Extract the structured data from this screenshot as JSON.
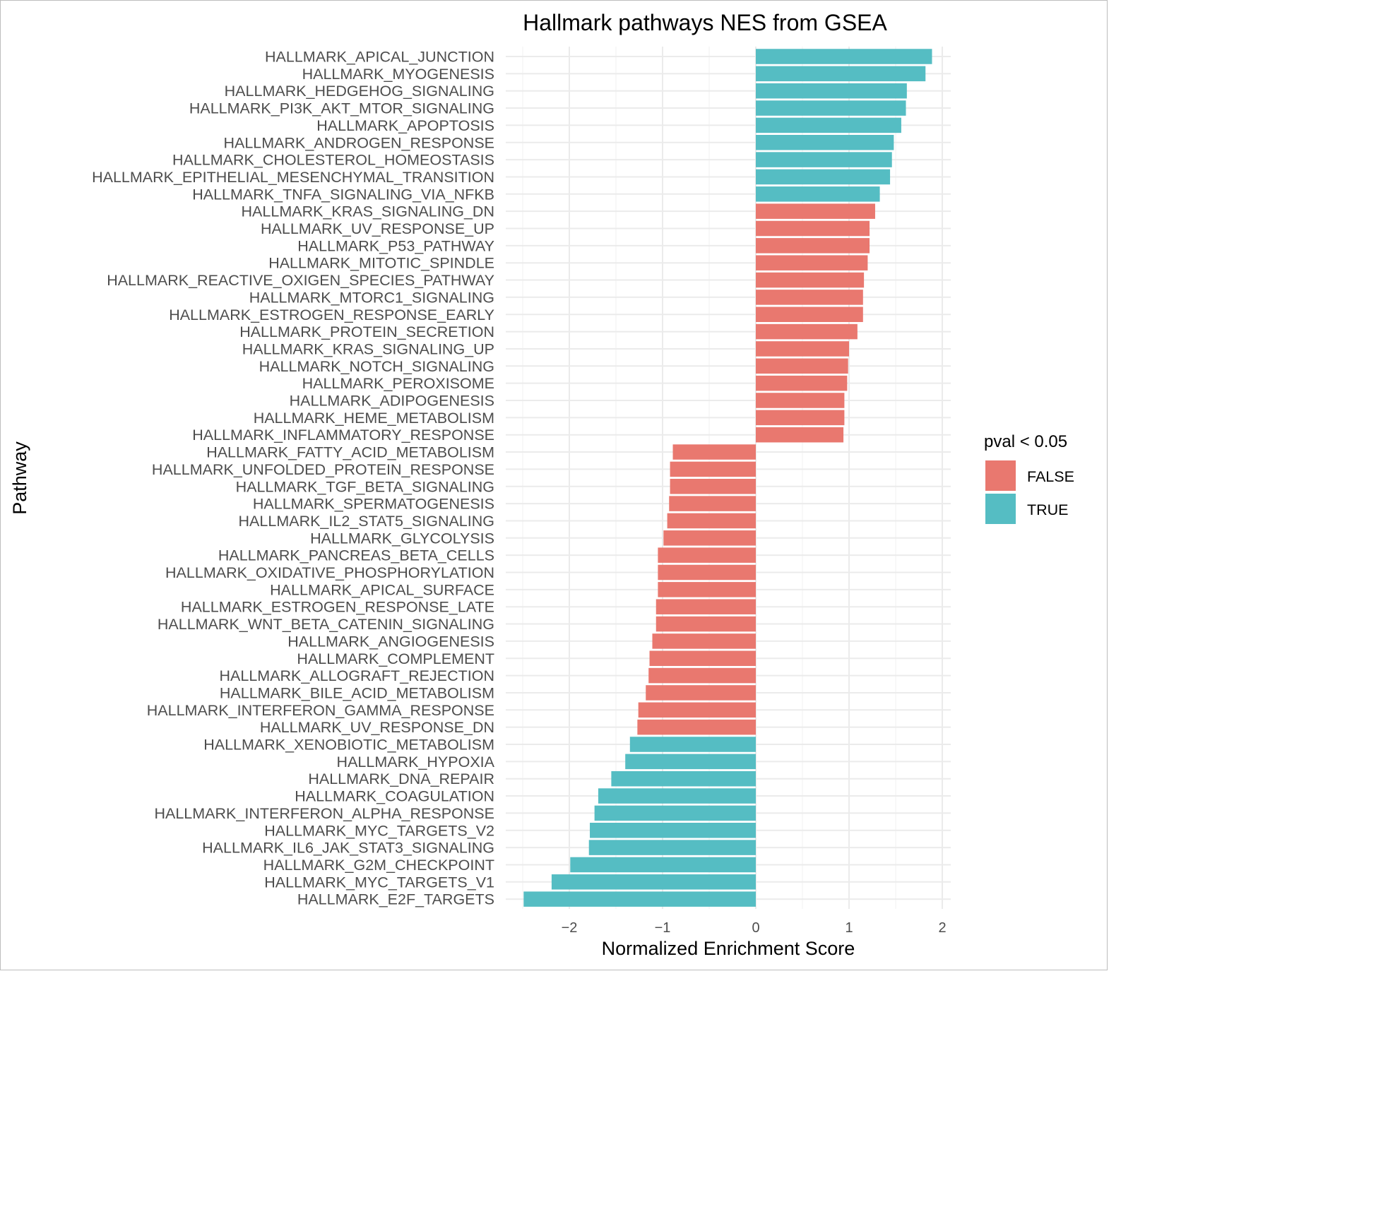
{
  "chart_data": {
    "type": "bar",
    "orientation": "horizontal",
    "title": "Hallmark pathways NES from GSEA",
    "xlabel": "Normalized Enrichment Score",
    "ylabel": "Pathway",
    "xlim": [
      -2.5,
      2.05
    ],
    "xticks": [
      -2,
      -1,
      0,
      1,
      2
    ],
    "xtick_labels": [
      "−2",
      "−1",
      "0",
      "1",
      "2"
    ],
    "grid": true,
    "legend": {
      "title": "pval < 0.05",
      "position": "right",
      "entries": [
        {
          "label": "FALSE",
          "color": "#E9786F"
        },
        {
          "label": "TRUE",
          "color": "#55BDC3"
        }
      ]
    },
    "bars": [
      {
        "pathway": "HALLMARK_APICAL_JUNCTION",
        "nes": 1.89,
        "significant": "TRUE"
      },
      {
        "pathway": "HALLMARK_MYOGENESIS",
        "nes": 1.82,
        "significant": "TRUE"
      },
      {
        "pathway": "HALLMARK_HEDGEHOG_SIGNALING",
        "nes": 1.62,
        "significant": "TRUE"
      },
      {
        "pathway": "HALLMARK_PI3K_AKT_MTOR_SIGNALING",
        "nes": 1.61,
        "significant": "TRUE"
      },
      {
        "pathway": "HALLMARK_APOPTOSIS",
        "nes": 1.56,
        "significant": "TRUE"
      },
      {
        "pathway": "HALLMARK_ANDROGEN_RESPONSE",
        "nes": 1.48,
        "significant": "TRUE"
      },
      {
        "pathway": "HALLMARK_CHOLESTEROL_HOMEOSTASIS",
        "nes": 1.46,
        "significant": "TRUE"
      },
      {
        "pathway": "HALLMARK_EPITHELIAL_MESENCHYMAL_TRANSITION",
        "nes": 1.44,
        "significant": "TRUE"
      },
      {
        "pathway": "HALLMARK_TNFA_SIGNALING_VIA_NFKB",
        "nes": 1.33,
        "significant": "TRUE"
      },
      {
        "pathway": "HALLMARK_KRAS_SIGNALING_DN",
        "nes": 1.28,
        "significant": "FALSE"
      },
      {
        "pathway": "HALLMARK_UV_RESPONSE_UP",
        "nes": 1.22,
        "significant": "FALSE"
      },
      {
        "pathway": "HALLMARK_P53_PATHWAY",
        "nes": 1.22,
        "significant": "FALSE"
      },
      {
        "pathway": "HALLMARK_MITOTIC_SPINDLE",
        "nes": 1.2,
        "significant": "FALSE"
      },
      {
        "pathway": "HALLMARK_REACTIVE_OXIGEN_SPECIES_PATHWAY",
        "nes": 1.16,
        "significant": "FALSE"
      },
      {
        "pathway": "HALLMARK_MTORC1_SIGNALING",
        "nes": 1.15,
        "significant": "FALSE"
      },
      {
        "pathway": "HALLMARK_ESTROGEN_RESPONSE_EARLY",
        "nes": 1.15,
        "significant": "FALSE"
      },
      {
        "pathway": "HALLMARK_PROTEIN_SECRETION",
        "nes": 1.09,
        "significant": "FALSE"
      },
      {
        "pathway": "HALLMARK_KRAS_SIGNALING_UP",
        "nes": 1.0,
        "significant": "FALSE"
      },
      {
        "pathway": "HALLMARK_NOTCH_SIGNALING",
        "nes": 0.99,
        "significant": "FALSE"
      },
      {
        "pathway": "HALLMARK_PEROXISOME",
        "nes": 0.98,
        "significant": "FALSE"
      },
      {
        "pathway": "HALLMARK_ADIPOGENESIS",
        "nes": 0.95,
        "significant": "FALSE"
      },
      {
        "pathway": "HALLMARK_HEME_METABOLISM",
        "nes": 0.95,
        "significant": "FALSE"
      },
      {
        "pathway": "HALLMARK_INFLAMMATORY_RESPONSE",
        "nes": 0.94,
        "significant": "FALSE"
      },
      {
        "pathway": "HALLMARK_FATTY_ACID_METABOLISM",
        "nes": -0.89,
        "significant": "FALSE"
      },
      {
        "pathway": "HALLMARK_UNFOLDED_PROTEIN_RESPONSE",
        "nes": -0.92,
        "significant": "FALSE"
      },
      {
        "pathway": "HALLMARK_TGF_BETA_SIGNALING",
        "nes": -0.92,
        "significant": "FALSE"
      },
      {
        "pathway": "HALLMARK_SPERMATOGENESIS",
        "nes": -0.93,
        "significant": "FALSE"
      },
      {
        "pathway": "HALLMARK_IL2_STAT5_SIGNALING",
        "nes": -0.95,
        "significant": "FALSE"
      },
      {
        "pathway": "HALLMARK_GLYCOLYSIS",
        "nes": -0.99,
        "significant": "FALSE"
      },
      {
        "pathway": "HALLMARK_PANCREAS_BETA_CELLS",
        "nes": -1.05,
        "significant": "FALSE"
      },
      {
        "pathway": "HALLMARK_OXIDATIVE_PHOSPHORYLATION",
        "nes": -1.05,
        "significant": "FALSE"
      },
      {
        "pathway": "HALLMARK_APICAL_SURFACE",
        "nes": -1.05,
        "significant": "FALSE"
      },
      {
        "pathway": "HALLMARK_ESTROGEN_RESPONSE_LATE",
        "nes": -1.07,
        "significant": "FALSE"
      },
      {
        "pathway": "HALLMARK_WNT_BETA_CATENIN_SIGNALING",
        "nes": -1.07,
        "significant": "FALSE"
      },
      {
        "pathway": "HALLMARK_ANGIOGENESIS",
        "nes": -1.11,
        "significant": "FALSE"
      },
      {
        "pathway": "HALLMARK_COMPLEMENT",
        "nes": -1.14,
        "significant": "FALSE"
      },
      {
        "pathway": "HALLMARK_ALLOGRAFT_REJECTION",
        "nes": -1.15,
        "significant": "FALSE"
      },
      {
        "pathway": "HALLMARK_BILE_ACID_METABOLISM",
        "nes": -1.18,
        "significant": "FALSE"
      },
      {
        "pathway": "HALLMARK_INTERFERON_GAMMA_RESPONSE",
        "nes": -1.26,
        "significant": "FALSE"
      },
      {
        "pathway": "HALLMARK_UV_RESPONSE_DN",
        "nes": -1.27,
        "significant": "FALSE"
      },
      {
        "pathway": "HALLMARK_XENOBIOTIC_METABOLISM",
        "nes": -1.35,
        "significant": "TRUE"
      },
      {
        "pathway": "HALLMARK_HYPOXIA",
        "nes": -1.4,
        "significant": "TRUE"
      },
      {
        "pathway": "HALLMARK_DNA_REPAIR",
        "nes": -1.55,
        "significant": "TRUE"
      },
      {
        "pathway": "HALLMARK_COAGULATION",
        "nes": -1.69,
        "significant": "TRUE"
      },
      {
        "pathway": "HALLMARK_INTERFERON_ALPHA_RESPONSE",
        "nes": -1.73,
        "significant": "TRUE"
      },
      {
        "pathway": "HALLMARK_MYC_TARGETS_V2",
        "nes": -1.78,
        "significant": "TRUE"
      },
      {
        "pathway": "HALLMARK_IL6_JAK_STAT3_SIGNALING",
        "nes": -1.79,
        "significant": "TRUE"
      },
      {
        "pathway": "HALLMARK_G2M_CHECKPOINT",
        "nes": -1.99,
        "significant": "TRUE"
      },
      {
        "pathway": "HALLMARK_MYC_TARGETS_V1",
        "nes": -2.19,
        "significant": "TRUE"
      },
      {
        "pathway": "HALLMARK_E2F_TARGETS",
        "nes": -2.49,
        "significant": "TRUE"
      }
    ]
  }
}
